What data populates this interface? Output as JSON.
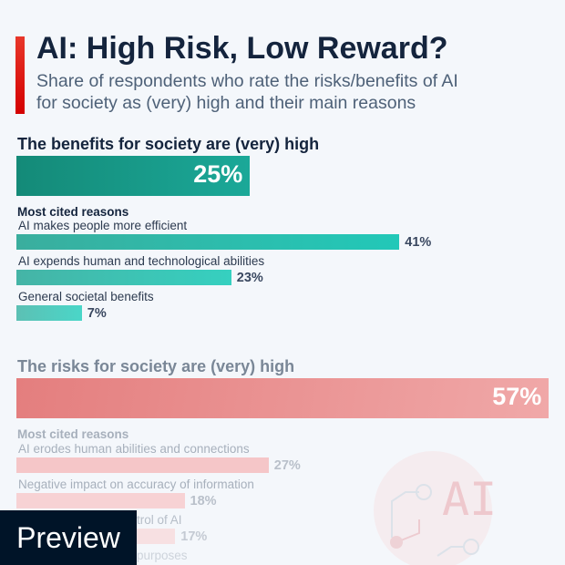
{
  "header": {
    "title": "AI: High Risk, Low Reward?",
    "subtitle_line1": "Share of respondents who rate the risks/benefits of AI",
    "subtitle_line2": "for society as (very) high and their main reasons"
  },
  "chart_data": {
    "type": "bar",
    "xlim": [
      0,
      100
    ],
    "groups": [
      {
        "heading": "The benefits for society are (very) high",
        "value": 25,
        "value_label": "25%",
        "reasons_title": "Most cited reasons",
        "reasons": [
          {
            "label": "AI makes people more efficient",
            "value": 41,
            "value_label": "41%"
          },
          {
            "label": "AI expends human and technological abilities",
            "value": 23,
            "value_label": "23%"
          },
          {
            "label": "General societal benefits",
            "value": 7,
            "value_label": "7%"
          }
        ]
      },
      {
        "heading": "The risks for society are (very) high",
        "value": 57,
        "value_label": "57%",
        "reasons_title": "Most cited reasons",
        "reasons": [
          {
            "label": "AI erodes human abilities and connections",
            "value": 27,
            "value_label": "27%"
          },
          {
            "label": "Negative impact on accuracy of information",
            "value": 18,
            "value_label": "18%"
          },
          {
            "label": "trol of AI",
            "value": 17,
            "value_label": "17%"
          },
          {
            "label": "purposes",
            "value": null,
            "value_label": null
          }
        ]
      }
    ]
  },
  "colors": {
    "accent": "#d40000",
    "benefit": "#1a9e8a",
    "benefit_reason": "#26c6b6",
    "risk": "#e88080",
    "title": "#14243d"
  },
  "illustration": {
    "text": "AI",
    "icon": "ai-circuit-icon"
  },
  "overlay": {
    "label": "Preview"
  }
}
